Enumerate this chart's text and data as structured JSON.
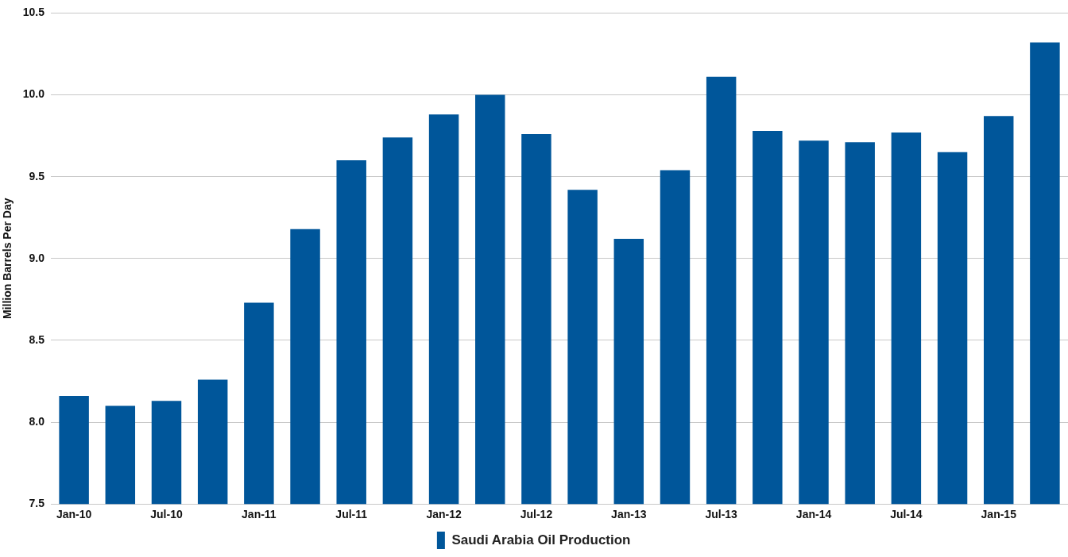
{
  "chart_data": {
    "type": "bar",
    "categories": [
      "Jan-10",
      null,
      "Jul-10",
      null,
      "Jan-11",
      null,
      "Jul-11",
      null,
      "Jan-12",
      null,
      "Jul-12",
      null,
      "Jan-13",
      null,
      "Jul-13",
      null,
      "Jan-14",
      null,
      "Jul-14",
      null,
      "Jan-15",
      null
    ],
    "series": [
      {
        "name": "Saudi Arabia Oil Production",
        "color": "#00569a",
        "values": [
          8.16,
          8.1,
          8.13,
          8.26,
          8.73,
          9.18,
          9.6,
          9.74,
          9.88,
          10.0,
          9.76,
          9.42,
          9.12,
          9.54,
          10.11,
          9.78,
          9.72,
          9.71,
          9.77,
          9.65,
          9.87,
          10.32
        ]
      }
    ],
    "ylabel": "Million Barrels Per Day",
    "ylim": [
      7.5,
      10.5
    ],
    "yticks": [
      7.5,
      {
        "value": 8,
        "label": "8.0"
      },
      8.5,
      {
        "value": 9,
        "label": "9.0"
      },
      9.5,
      {
        "value": 10,
        "label": "10.0"
      },
      10.5
    ],
    "grid": "y",
    "legend": "bottom"
  }
}
